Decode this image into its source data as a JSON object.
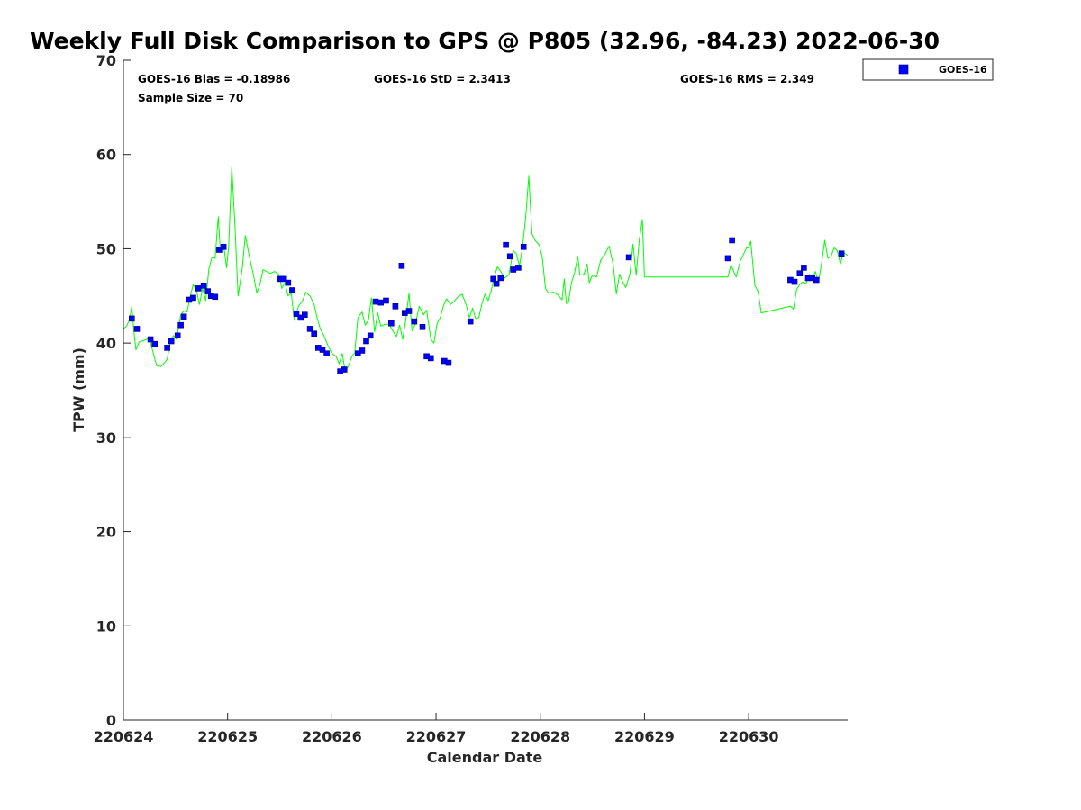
{
  "chart_data": {
    "type": "scatter",
    "title": "Weekly Full Disk Comparison to GPS @ P805 (32.96, -84.23) 2022-06-30",
    "xlabel": "Calendar Date",
    "ylabel": "TPW (mm)",
    "x_unit": "days since 220624 00Z",
    "xlim": [
      0,
      6.95
    ],
    "ylim": [
      0,
      70
    ],
    "x_ticks": [
      {
        "x": 0,
        "label": "220624"
      },
      {
        "x": 1,
        "label": "220625"
      },
      {
        "x": 2,
        "label": "220626"
      },
      {
        "x": 3,
        "label": "220627"
      },
      {
        "x": 4,
        "label": "220628"
      },
      {
        "x": 5,
        "label": "220629"
      },
      {
        "x": 6,
        "label": "220630"
      }
    ],
    "y_ticks": [
      0,
      10,
      20,
      30,
      40,
      50,
      60,
      70
    ],
    "grid": false,
    "legend": {
      "position": "top-right",
      "entries": [
        "GOES-16"
      ]
    },
    "stats": {
      "bias": "GOES-16 Bias = -0.18986",
      "std": "GOES-16 StD = 2.3413",
      "rms": "GOES-16 RMS = 2.349",
      "sample": "Sample Size = 70"
    },
    "colors": {
      "goes": "#0000ff",
      "goes_edge": "#000080",
      "gps": "#00ff00"
    },
    "series": [
      {
        "name": "GOES-16",
        "marker": "square",
        "color": "#0000ff",
        "points": [
          [
            0.08,
            42.6
          ],
          [
            0.13,
            41.5
          ],
          [
            0.26,
            40.4
          ],
          [
            0.3,
            39.9
          ],
          [
            0.42,
            39.5
          ],
          [
            0.46,
            40.2
          ],
          [
            0.52,
            40.8
          ],
          [
            0.55,
            41.9
          ],
          [
            0.58,
            42.8
          ],
          [
            0.63,
            44.6
          ],
          [
            0.67,
            44.8
          ],
          [
            0.72,
            45.8
          ],
          [
            0.77,
            46.1
          ],
          [
            0.81,
            45.5
          ],
          [
            0.84,
            45.0
          ],
          [
            0.88,
            44.9
          ],
          [
            0.92,
            49.9
          ],
          [
            0.96,
            50.2
          ],
          [
            1.5,
            46.8
          ],
          [
            1.54,
            46.8
          ],
          [
            1.58,
            46.4
          ],
          [
            1.62,
            45.6
          ],
          [
            1.66,
            43.1
          ],
          [
            1.7,
            42.7
          ],
          [
            1.74,
            43.0
          ],
          [
            1.79,
            41.5
          ],
          [
            1.83,
            41.0
          ],
          [
            1.87,
            39.5
          ],
          [
            1.91,
            39.3
          ],
          [
            1.95,
            38.9
          ],
          [
            2.08,
            37.0
          ],
          [
            2.12,
            37.2
          ],
          [
            2.25,
            38.9
          ],
          [
            2.29,
            39.2
          ],
          [
            2.33,
            40.2
          ],
          [
            2.37,
            40.8
          ],
          [
            2.42,
            44.4
          ],
          [
            2.47,
            44.3
          ],
          [
            2.52,
            44.5
          ],
          [
            2.57,
            42.1
          ],
          [
            2.61,
            43.9
          ],
          [
            2.67,
            48.2
          ],
          [
            2.7,
            43.2
          ],
          [
            2.74,
            43.4
          ],
          [
            2.79,
            42.3
          ],
          [
            2.87,
            41.7
          ],
          [
            2.91,
            38.6
          ],
          [
            2.95,
            38.4
          ],
          [
            3.08,
            38.1
          ],
          [
            3.12,
            37.9
          ],
          [
            3.33,
            42.3
          ],
          [
            3.55,
            46.8
          ],
          [
            3.58,
            46.3
          ],
          [
            3.62,
            46.9
          ],
          [
            3.67,
            50.4
          ],
          [
            3.71,
            49.2
          ],
          [
            3.74,
            47.8
          ],
          [
            3.79,
            48.0
          ],
          [
            3.84,
            50.2
          ],
          [
            4.85,
            49.1
          ],
          [
            5.8,
            49.0
          ],
          [
            5.84,
            50.9
          ],
          [
            6.4,
            46.7
          ],
          [
            6.44,
            46.5
          ],
          [
            6.49,
            47.4
          ],
          [
            6.53,
            48.0
          ],
          [
            6.57,
            46.9
          ],
          [
            6.61,
            46.9
          ],
          [
            6.65,
            46.7
          ],
          [
            6.89,
            49.5
          ]
        ]
      },
      {
        "name": "GPS",
        "marker": "line",
        "color": "#00ff00",
        "points": [
          [
            0.0,
            41.5
          ],
          [
            0.03,
            41.8
          ],
          [
            0.06,
            42.5
          ],
          [
            0.08,
            43.9
          ],
          [
            0.1,
            41.3
          ],
          [
            0.12,
            39.3
          ],
          [
            0.15,
            40.1
          ],
          [
            0.2,
            40.3
          ],
          [
            0.25,
            40.5
          ],
          [
            0.29,
            38.8
          ],
          [
            0.32,
            37.6
          ],
          [
            0.36,
            37.5
          ],
          [
            0.4,
            38.0
          ],
          [
            0.42,
            38.3
          ],
          [
            0.45,
            40.1
          ],
          [
            0.48,
            40.8
          ],
          [
            0.51,
            40.4
          ],
          [
            0.55,
            43.0
          ],
          [
            0.58,
            43.4
          ],
          [
            0.61,
            43.3
          ],
          [
            0.64,
            44.9
          ],
          [
            0.67,
            46.2
          ],
          [
            0.7,
            45.6
          ],
          [
            0.73,
            44.1
          ],
          [
            0.76,
            45.8
          ],
          [
            0.79,
            44.5
          ],
          [
            0.82,
            47.9
          ],
          [
            0.85,
            49.1
          ],
          [
            0.88,
            49.0
          ],
          [
            0.91,
            53.4
          ],
          [
            0.93,
            49.8
          ],
          [
            0.96,
            50.5
          ],
          [
            0.99,
            48.0
          ],
          [
            1.01,
            50.2
          ],
          [
            1.04,
            58.7
          ],
          [
            1.07,
            52.5
          ],
          [
            1.1,
            45.0
          ],
          [
            1.14,
            47.9
          ],
          [
            1.17,
            51.4
          ],
          [
            1.21,
            49.1
          ],
          [
            1.25,
            47.1
          ],
          [
            1.28,
            45.3
          ],
          [
            1.31,
            46.2
          ],
          [
            1.34,
            47.8
          ],
          [
            1.37,
            47.6
          ],
          [
            1.41,
            47.4
          ],
          [
            1.45,
            47.6
          ],
          [
            1.49,
            47.3
          ],
          [
            1.52,
            45.8
          ],
          [
            1.55,
            46.4
          ],
          [
            1.58,
            45.0
          ],
          [
            1.61,
            45.3
          ],
          [
            1.64,
            42.4
          ],
          [
            1.68,
            43.9
          ],
          [
            1.72,
            44.5
          ],
          [
            1.75,
            45.4
          ],
          [
            1.79,
            45.0
          ],
          [
            1.83,
            44.1
          ],
          [
            1.86,
            42.6
          ],
          [
            1.89,
            41.5
          ],
          [
            1.92,
            40.9
          ],
          [
            1.96,
            39.8
          ],
          [
            2.0,
            38.9
          ],
          [
            2.04,
            38.6
          ],
          [
            2.07,
            37.8
          ],
          [
            2.1,
            38.9
          ],
          [
            2.13,
            36.9
          ],
          [
            2.16,
            37.6
          ],
          [
            2.19,
            38.5
          ],
          [
            2.22,
            39.0
          ],
          [
            2.25,
            42.7
          ],
          [
            2.29,
            43.3
          ],
          [
            2.32,
            41.9
          ],
          [
            2.35,
            42.4
          ],
          [
            2.38,
            44.8
          ],
          [
            2.41,
            41.2
          ],
          [
            2.44,
            43.2
          ],
          [
            2.47,
            41.8
          ],
          [
            2.51,
            42.0
          ],
          [
            2.55,
            42.0
          ],
          [
            2.59,
            41.2
          ],
          [
            2.62,
            40.7
          ],
          [
            2.65,
            41.9
          ],
          [
            2.68,
            40.4
          ],
          [
            2.71,
            42.5
          ],
          [
            2.74,
            45.3
          ],
          [
            2.77,
            41.3
          ],
          [
            2.8,
            42.0
          ],
          [
            2.84,
            43.9
          ],
          [
            2.88,
            43.0
          ],
          [
            2.91,
            43.5
          ],
          [
            2.95,
            40.4
          ],
          [
            2.98,
            40.0
          ],
          [
            3.01,
            42.1
          ],
          [
            3.04,
            42.7
          ],
          [
            3.07,
            43.9
          ],
          [
            3.1,
            44.7
          ],
          [
            3.14,
            44.1
          ],
          [
            3.17,
            44.4
          ],
          [
            3.21,
            44.9
          ],
          [
            3.25,
            45.2
          ],
          [
            3.29,
            44.0
          ],
          [
            3.32,
            42.7
          ],
          [
            3.35,
            43.7
          ],
          [
            3.38,
            42.6
          ],
          [
            3.41,
            42.7
          ],
          [
            3.44,
            44.2
          ],
          [
            3.47,
            45.2
          ],
          [
            3.5,
            44.5
          ],
          [
            3.53,
            45.6
          ],
          [
            3.56,
            47.1
          ],
          [
            3.59,
            48.1
          ],
          [
            3.62,
            47.6
          ],
          [
            3.66,
            46.9
          ],
          [
            3.7,
            47.3
          ],
          [
            3.74,
            49.8
          ],
          [
            3.77,
            49.5
          ],
          [
            3.8,
            48.2
          ],
          [
            3.83,
            50.2
          ],
          [
            3.86,
            53.3
          ],
          [
            3.89,
            57.7
          ],
          [
            3.92,
            51.6
          ],
          [
            3.95,
            50.9
          ],
          [
            3.99,
            50.4
          ],
          [
            4.02,
            49.1
          ],
          [
            4.05,
            45.8
          ],
          [
            4.08,
            45.3
          ],
          [
            4.13,
            45.4
          ],
          [
            4.17,
            45.1
          ],
          [
            4.21,
            44.6
          ],
          [
            4.23,
            46.8
          ],
          [
            4.25,
            44.2
          ],
          [
            4.27,
            44.3
          ],
          [
            4.3,
            46.4
          ],
          [
            4.33,
            47.5
          ],
          [
            4.36,
            49.2
          ],
          [
            4.38,
            47.2
          ],
          [
            4.42,
            47.3
          ],
          [
            4.45,
            48.4
          ],
          [
            4.47,
            46.4
          ],
          [
            4.5,
            47.2
          ],
          [
            4.54,
            47.0
          ],
          [
            4.58,
            48.8
          ],
          [
            4.62,
            49.4
          ],
          [
            4.66,
            50.3
          ],
          [
            4.7,
            48.3
          ],
          [
            4.73,
            45.2
          ],
          [
            4.76,
            47.3
          ],
          [
            4.79,
            46.5
          ],
          [
            4.82,
            45.9
          ],
          [
            4.86,
            47.3
          ],
          [
            4.89,
            50.5
          ],
          [
            4.92,
            47.2
          ],
          [
            4.95,
            50.9
          ],
          [
            4.98,
            53.1
          ],
          [
            5.0,
            47.0
          ],
          [
            5.8,
            47.0
          ],
          [
            5.83,
            48.3
          ],
          [
            5.86,
            47.5
          ],
          [
            5.88,
            47.0
          ],
          [
            5.92,
            48.7
          ],
          [
            5.95,
            49.4
          ],
          [
            5.98,
            50.1
          ],
          [
            6.0,
            50.1
          ],
          [
            6.02,
            50.8
          ],
          [
            6.06,
            46.1
          ],
          [
            6.09,
            45.5
          ],
          [
            6.12,
            43.2
          ],
          [
            6.4,
            43.9
          ],
          [
            6.43,
            43.6
          ],
          [
            6.46,
            45.7
          ],
          [
            6.49,
            46.2
          ],
          [
            6.52,
            46.5
          ],
          [
            6.55,
            46.3
          ],
          [
            6.58,
            47.3
          ],
          [
            6.61,
            46.8
          ],
          [
            6.64,
            47.6
          ],
          [
            6.67,
            46.5
          ],
          [
            6.7,
            48.5
          ],
          [
            6.73,
            50.9
          ],
          [
            6.76,
            49.0
          ],
          [
            6.79,
            49.2
          ],
          [
            6.82,
            50.1
          ],
          [
            6.85,
            49.8
          ],
          [
            6.88,
            48.4
          ],
          [
            6.91,
            49.6
          ],
          [
            6.95,
            49.3
          ]
        ]
      }
    ]
  }
}
